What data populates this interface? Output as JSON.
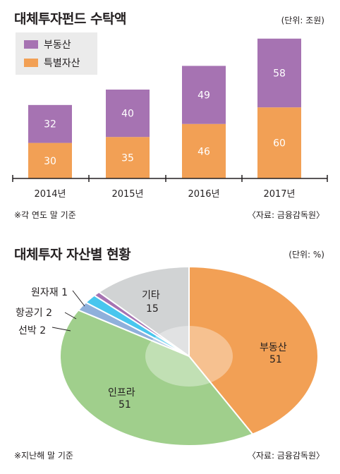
{
  "colors": {
    "purple": "#a673b2",
    "orange": "#f2a055",
    "green": "#a0cf8c",
    "blue": "#8fb0db",
    "cyan": "#48c6ee",
    "gray": "#d1d3d4",
    "legend_bg": "#ebebeb"
  },
  "chart_data": [
    {
      "type": "bar",
      "stacked": true,
      "title": "대체투자펀드 수탁액",
      "unit": "(단위: 조원)",
      "categories": [
        "2014년",
        "2015년",
        "2016년",
        "2017년"
      ],
      "series": [
        {
          "name": "특별자산",
          "values": [
            30,
            35,
            46,
            60
          ],
          "color": "#f2a055"
        },
        {
          "name": "부동산",
          "values": [
            32,
            40,
            49,
            58
          ],
          "color": "#a673b2"
        }
      ],
      "legend": [
        "부동산",
        "특별자산"
      ],
      "legend_placement": "top-left",
      "note": "※각 연도 말 기준",
      "source": "〈자료: 금융감독원〉",
      "ylim": [
        0,
        125
      ],
      "grid": false
    },
    {
      "type": "pie",
      "title": "대체투자 자산별 현황",
      "unit": "(단위: %)",
      "slices": [
        {
          "name": "부동산",
          "value": 51,
          "color": "#f2a055"
        },
        {
          "name": "인프라",
          "value": 51,
          "color": "#a0cf8c"
        },
        {
          "name": "선박",
          "value": 2,
          "color": "#8fb0db"
        },
        {
          "name": "항공기",
          "value": 2,
          "color": "#48c6ee"
        },
        {
          "name": "원자재",
          "value": 1,
          "color": "#a673b2"
        },
        {
          "name": "기타",
          "value": 15,
          "color": "#d1d3d4"
        }
      ],
      "labels": {
        "realestate_name": "부동산",
        "realestate_value": "51",
        "infra_name": "인프라",
        "infra_value": "51",
        "etc_name": "기타",
        "etc_value": "15",
        "ship": "선박 2",
        "aircraft": "항공기 2",
        "commodity": "원자재 1"
      },
      "note": "※지난해 말 기준",
      "source": "〈자료: 금융감독원〉"
    }
  ]
}
